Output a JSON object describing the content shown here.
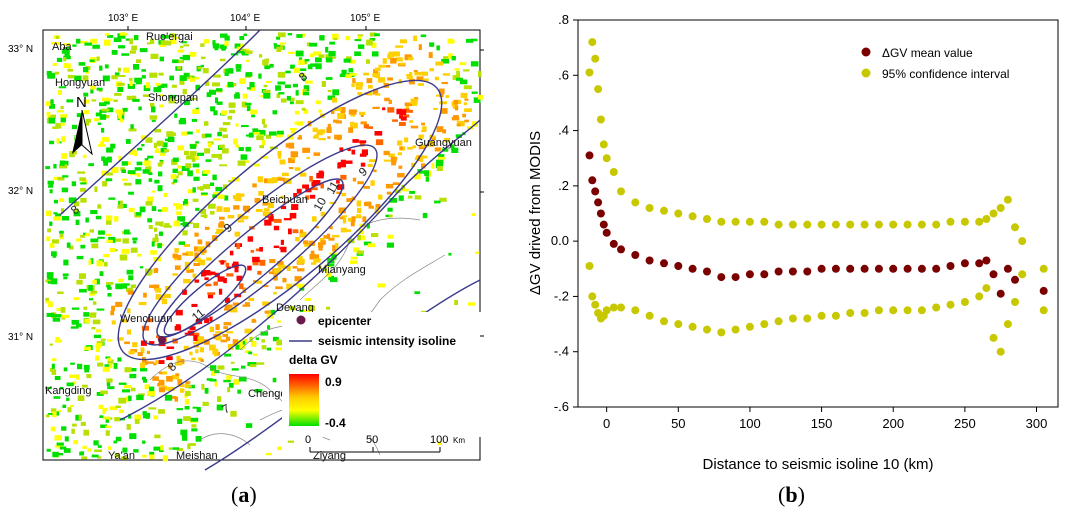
{
  "map": {
    "lon_ticks": [
      "103° E",
      "104° E",
      "105° E"
    ],
    "lat_ticks": [
      "33° N",
      "32° N",
      "31° N"
    ],
    "places": [
      "Aba",
      "Ruo'ergai",
      "Hongyuan",
      "Shongpan",
      "Guangyuan",
      "Beichuan",
      "Mianyang",
      "Deyang",
      "Wenchuan",
      "Kangding",
      "Chengdu",
      "Ya'an",
      "Meishan",
      "Ziyang"
    ],
    "isoline_labels": [
      "8",
      "9",
      "10",
      "11",
      "9",
      "8",
      "8",
      "7",
      "11"
    ],
    "north": "N",
    "legend": {
      "epicenter_label": "epicenter",
      "isoline_label": "seismic intensity isoline",
      "color_title": "delta GV",
      "max_label": "0.9",
      "min_label": "-0.4",
      "colors": {
        "high": "#ff0000",
        "mid": "#ffff00",
        "low": "#00e000",
        "epicenter": "#6a1a4a",
        "isoline": "#3a3a8c"
      }
    },
    "scalebar": {
      "labels": [
        "0",
        "50",
        "100"
      ],
      "unit": "Km"
    }
  },
  "captions": {
    "a": "a",
    "b": "b"
  },
  "chart_data": {
    "type": "scatter",
    "xlabel": "Distance to seismic isoline 10 (km)",
    "ylabel": "ΔGV drived from MODIS",
    "xlim": [
      -20,
      315
    ],
    "ylim": [
      -0.6,
      0.8
    ],
    "xticks": [
      0,
      50,
      100,
      150,
      200,
      250,
      300
    ],
    "yticks": [
      ".8",
      ".6",
      ".4",
      ".2",
      "0.0",
      "-.2",
      "-.4",
      "-.6"
    ],
    "legend_position": "top-right",
    "series": [
      {
        "name": "ΔGV mean value",
        "color": "#7b0000",
        "x": [
          -12,
          -10,
          -8,
          -6,
          -4,
          -2,
          0,
          5,
          10,
          20,
          30,
          40,
          50,
          60,
          70,
          80,
          90,
          100,
          110,
          120,
          130,
          140,
          150,
          160,
          170,
          180,
          190,
          200,
          210,
          220,
          230,
          240,
          250,
          260,
          265,
          270,
          275,
          280,
          285,
          305
        ],
        "y": [
          0.31,
          0.22,
          0.18,
          0.14,
          0.1,
          0.06,
          0.03,
          -0.01,
          -0.03,
          -0.05,
          -0.07,
          -0.08,
          -0.09,
          -0.1,
          -0.11,
          -0.13,
          -0.13,
          -0.12,
          -0.12,
          -0.11,
          -0.11,
          -0.11,
          -0.1,
          -0.1,
          -0.1,
          -0.1,
          -0.1,
          -0.1,
          -0.1,
          -0.1,
          -0.1,
          -0.09,
          -0.08,
          -0.08,
          -0.07,
          -0.12,
          -0.19,
          -0.1,
          -0.14,
          -0.18
        ]
      },
      {
        "name": "95% confidence interval",
        "color": "#c8c800",
        "x": [
          -12,
          -10,
          -8,
          -6,
          -4,
          -2,
          0,
          5,
          10,
          20,
          30,
          40,
          50,
          60,
          70,
          80,
          90,
          100,
          110,
          120,
          130,
          140,
          150,
          160,
          170,
          180,
          190,
          200,
          210,
          220,
          230,
          240,
          250,
          260,
          265,
          270,
          275,
          280,
          285,
          290,
          305,
          -12,
          -10,
          -8,
          -6,
          -4,
          -2,
          0,
          5,
          10,
          20,
          30,
          40,
          50,
          60,
          70,
          80,
          90,
          100,
          110,
          120,
          130,
          140,
          150,
          160,
          170,
          180,
          190,
          200,
          210,
          220,
          230,
          240,
          250,
          260,
          265,
          270,
          275,
          280,
          285,
          290,
          305
        ],
        "y": [
          0.61,
          0.72,
          0.66,
          0.55,
          0.44,
          0.35,
          0.3,
          0.25,
          0.18,
          0.14,
          0.12,
          0.11,
          0.1,
          0.09,
          0.08,
          0.07,
          0.07,
          0.07,
          0.07,
          0.06,
          0.06,
          0.06,
          0.06,
          0.06,
          0.06,
          0.06,
          0.06,
          0.06,
          0.06,
          0.06,
          0.06,
          0.07,
          0.07,
          0.07,
          0.08,
          0.1,
          0.12,
          0.15,
          0.05,
          0.0,
          -0.25,
          -0.09,
          -0.2,
          -0.23,
          -0.26,
          -0.28,
          -0.27,
          -0.25,
          -0.24,
          -0.24,
          -0.25,
          -0.27,
          -0.29,
          -0.3,
          -0.31,
          -0.32,
          -0.33,
          -0.32,
          -0.31,
          -0.3,
          -0.29,
          -0.28,
          -0.28,
          -0.27,
          -0.27,
          -0.26,
          -0.26,
          -0.25,
          -0.25,
          -0.25,
          -0.25,
          -0.24,
          -0.23,
          -0.22,
          -0.2,
          -0.17,
          -0.35,
          -0.4,
          -0.3,
          -0.22,
          -0.12,
          -0.1
        ]
      }
    ]
  }
}
